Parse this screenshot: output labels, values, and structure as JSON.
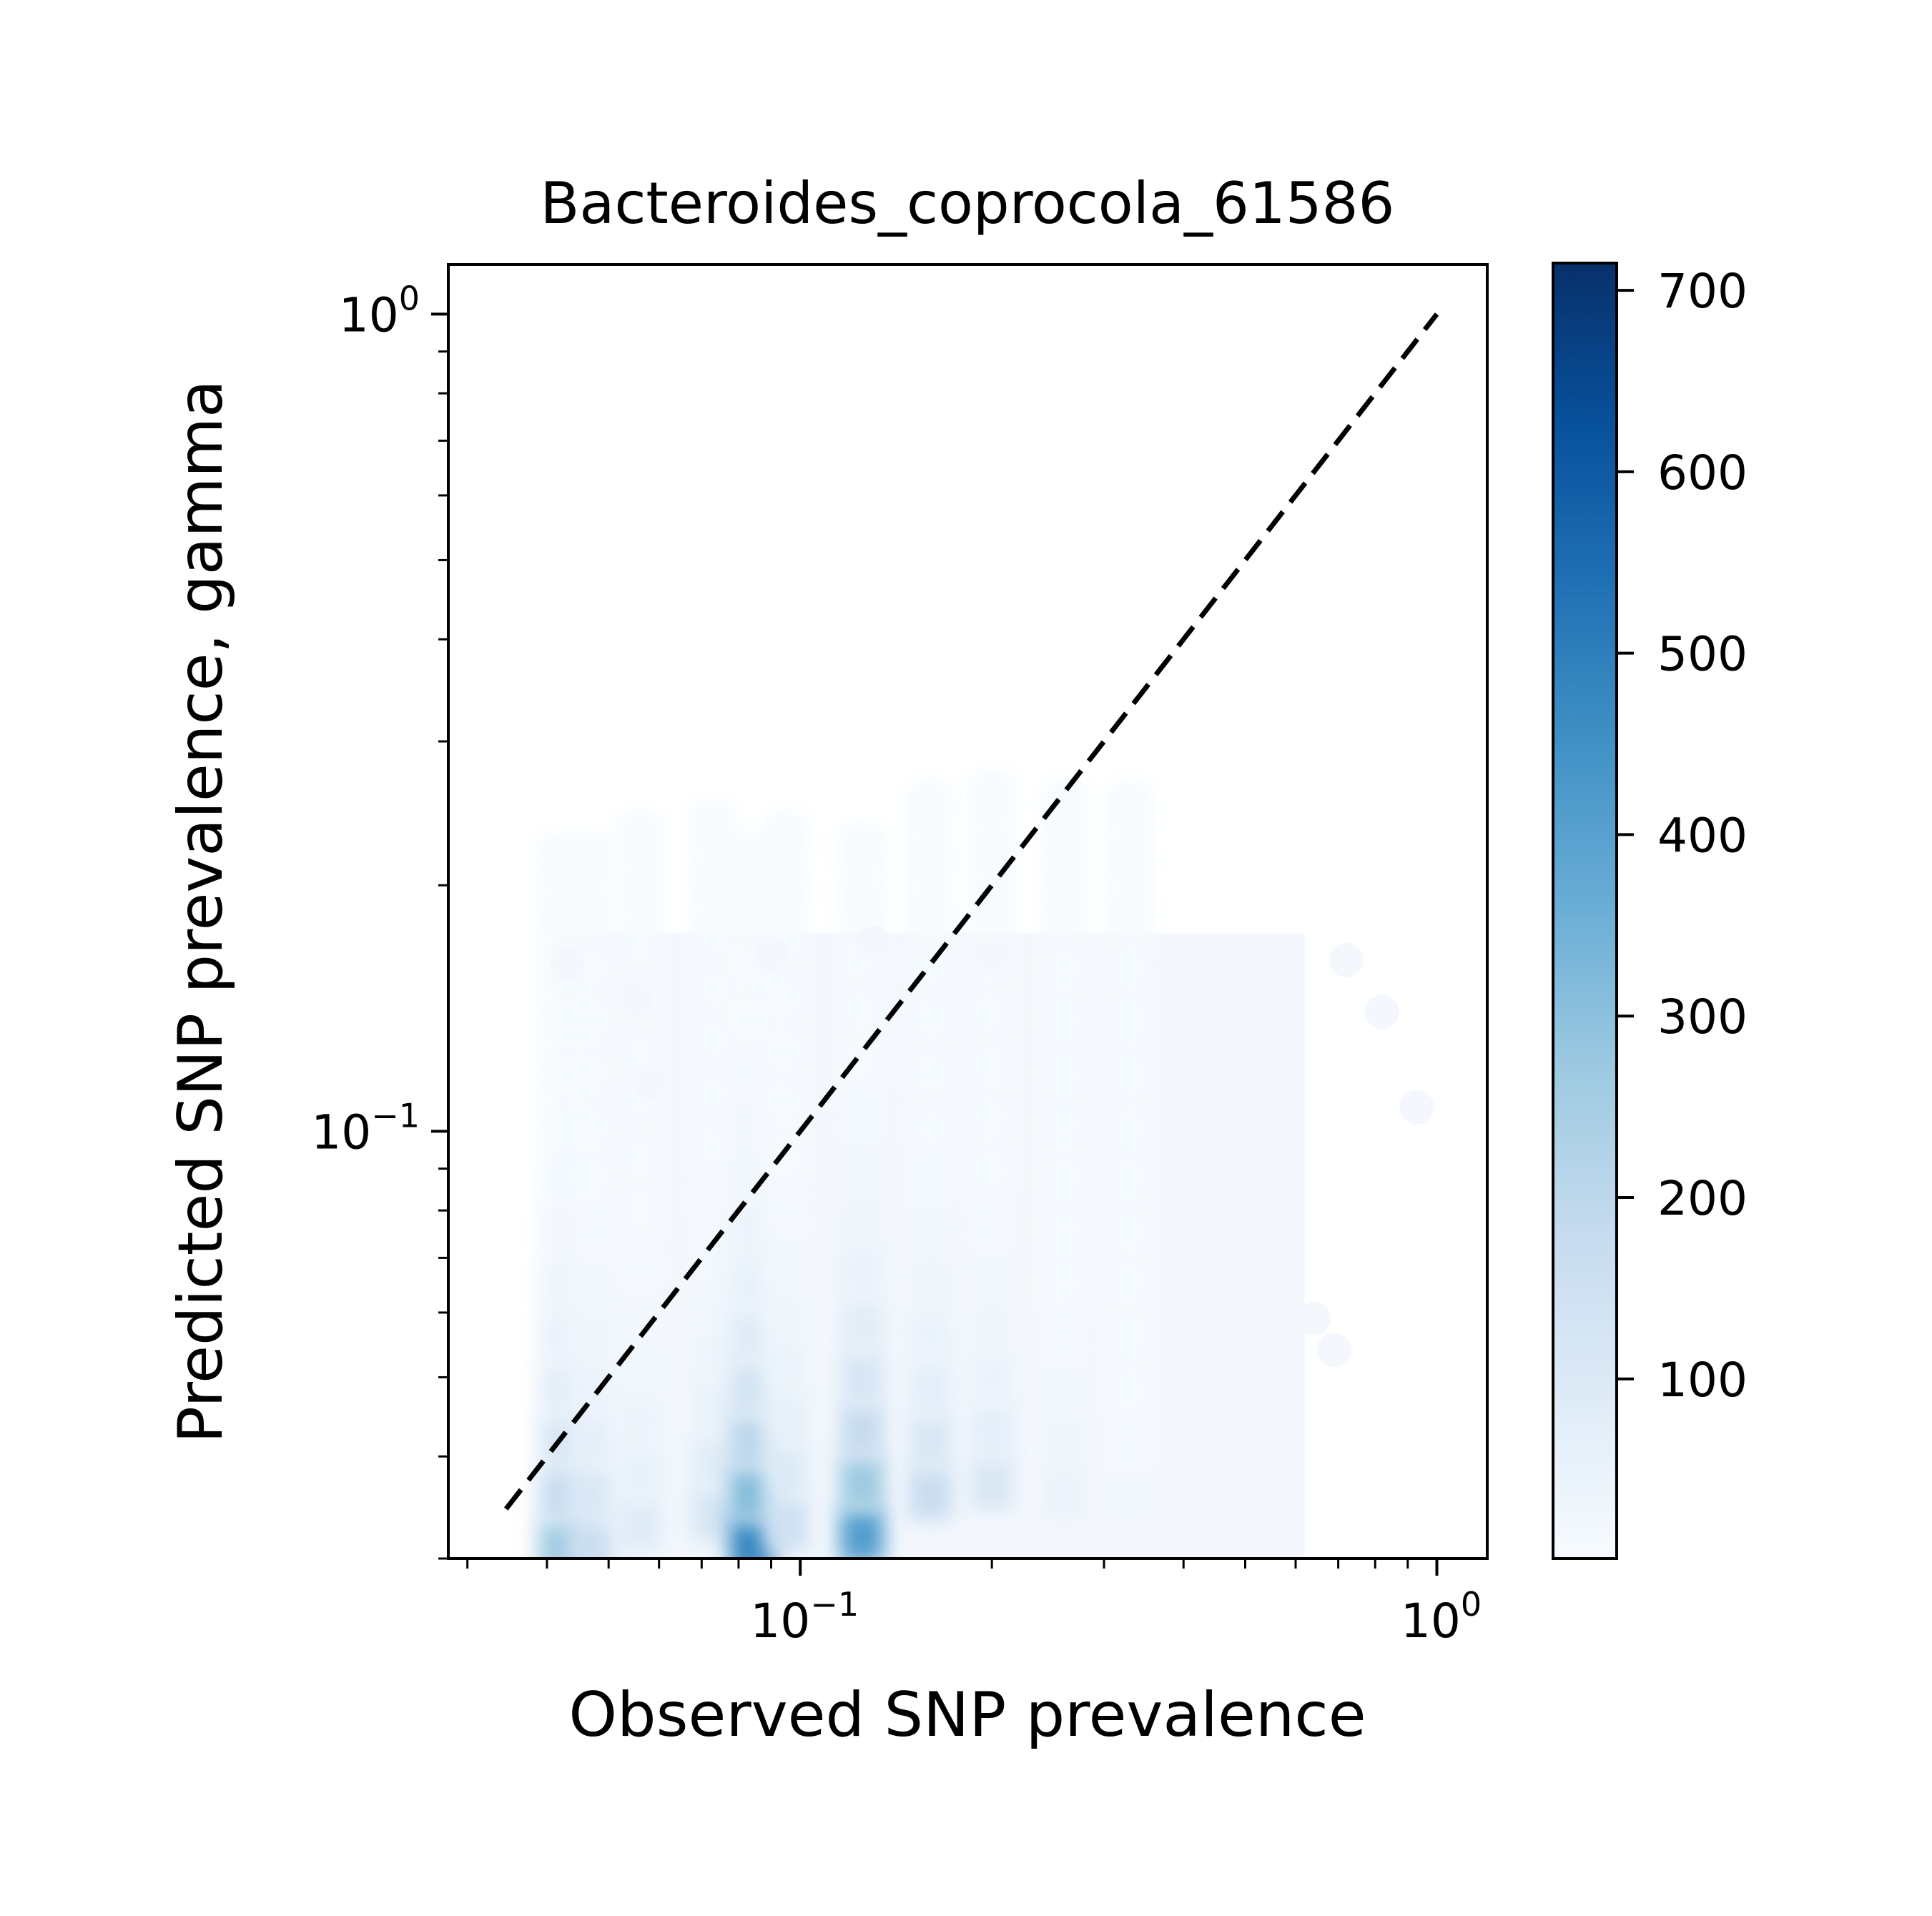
{
  "chart_data": {
    "type": "scatter",
    "variant": "hexbin-density",
    "title": "Bacteroides_coprocola_61586",
    "xlabel": "Observed SNP prevalence",
    "ylabel": "Predicted SNP prevalence, gamma",
    "x_scale": "log",
    "y_scale": "log",
    "xlim": [
      0.028,
      1.2
    ],
    "ylim": [
      0.03,
      1.15
    ],
    "x_ticks": [
      {
        "value": 0.1,
        "base": "10",
        "exp": "−1"
      },
      {
        "value": 1,
        "base": "10",
        "exp": "0"
      }
    ],
    "y_ticks": [
      {
        "value": 0.1,
        "base": "10",
        "exp": "−1"
      },
      {
        "value": 1,
        "base": "10",
        "exp": "0"
      }
    ],
    "reference_line": {
      "style": "dashed",
      "color": "#000000",
      "x": [
        0.0345,
        1.0
      ],
      "y": [
        0.0345,
        1.0
      ]
    },
    "colorbar": {
      "ticks": [
        "100",
        "200",
        "300",
        "400",
        "500",
        "600",
        "700"
      ],
      "tick_values": [
        100,
        200,
        300,
        400,
        500,
        600,
        700
      ],
      "range": [
        1,
        715
      ],
      "colormap": "Blues",
      "color_low": "#f7fbff",
      "color_high": "#08306b"
    },
    "density_columns": [
      {
        "x": 0.042,
        "peak_count": 260,
        "peak_y": 0.031
      },
      {
        "x": 0.047,
        "peak_count": 160,
        "peak_y": 0.031
      },
      {
        "x": 0.056,
        "peak_count": 90,
        "peak_y": 0.033
      },
      {
        "x": 0.073,
        "peak_count": 120,
        "peak_y": 0.034
      },
      {
        "x": 0.084,
        "peak_count": 480,
        "peak_y": 0.031
      },
      {
        "x": 0.095,
        "peak_count": 150,
        "peak_y": 0.033
      },
      {
        "x": 0.125,
        "peak_count": 410,
        "peak_y": 0.032
      },
      {
        "x": 0.16,
        "peak_count": 170,
        "peak_y": 0.036
      },
      {
        "x": 0.2,
        "peak_count": 110,
        "peak_y": 0.037
      },
      {
        "x": 0.26,
        "peak_count": 45,
        "peak_y": 0.036
      },
      {
        "x": 0.33,
        "peak_count": 20,
        "peak_y": 0.036
      }
    ],
    "sparse_points": [
      {
        "x": 0.043,
        "y": 0.16
      },
      {
        "x": 0.055,
        "y": 0.145
      },
      {
        "x": 0.058,
        "y": 0.115
      },
      {
        "x": 0.09,
        "y": 0.165
      },
      {
        "x": 0.13,
        "y": 0.17
      },
      {
        "x": 0.2,
        "y": 0.165
      },
      {
        "x": 0.38,
        "y": 0.16
      },
      {
        "x": 0.44,
        "y": 0.125
      },
      {
        "x": 0.47,
        "y": 0.115
      },
      {
        "x": 0.72,
        "y": 0.162
      },
      {
        "x": 0.82,
        "y": 0.14
      },
      {
        "x": 0.93,
        "y": 0.107
      },
      {
        "x": 0.58,
        "y": 0.096
      },
      {
        "x": 0.57,
        "y": 0.082
      },
      {
        "x": 0.64,
        "y": 0.059
      },
      {
        "x": 0.69,
        "y": 0.054
      },
      {
        "x": 0.52,
        "y": 0.057
      },
      {
        "x": 0.46,
        "y": 0.048
      },
      {
        "x": 0.48,
        "y": 0.038
      },
      {
        "x": 0.46,
        "y": 0.031
      }
    ]
  }
}
